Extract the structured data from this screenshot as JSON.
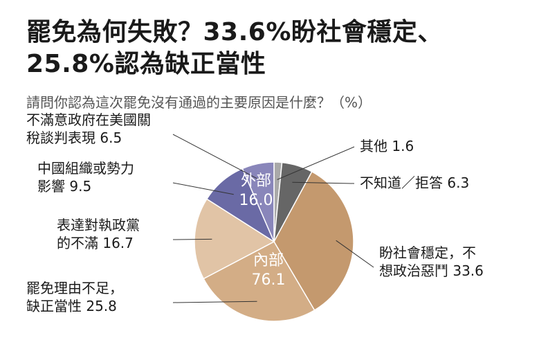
{
  "title_line1": "罷免為何失敗？33.6%盼社會穩定、",
  "title_line2": "25.8%認為缺正當性",
  "subtitle": "請問你認為這次罷免沒有通過的主要原因是什麼？（%）",
  "chart_data": {
    "type": "pie",
    "slices": [
      {
        "label_lines": [
          "其他 1.6"
        ],
        "value": 1.6,
        "color": "#a9a9a9"
      },
      {
        "label_lines": [
          "不知道／拒答 6.3"
        ],
        "value": 6.3,
        "color": "#666666"
      },
      {
        "label_lines": [
          "盼社會穩定，不",
          "想政治惡鬥 33.6"
        ],
        "value": 33.6,
        "color": "#c4996e"
      },
      {
        "label_lines": [
          "罷免理由不足，",
          "缺正當性 25.8"
        ],
        "value": 25.8,
        "color": "#d3ad86"
      },
      {
        "label_lines": [
          "表達對執政黨",
          "的不滿 16.7"
        ],
        "value": 16.7,
        "color": "#e1c4a6"
      },
      {
        "label_lines": [
          "中國組織或勢力",
          "影響 9.5"
        ],
        "value": 9.5,
        "color": "#6a6aa5"
      },
      {
        "label_lines": [
          "不滿意政府在美國關",
          "稅談判表現 6.5"
        ],
        "value": 6.5,
        "color": "#8986ba"
      }
    ],
    "groups": [
      {
        "name": "外部",
        "value": "16.0"
      },
      {
        "name": "內部",
        "value": "76.1"
      }
    ]
  }
}
